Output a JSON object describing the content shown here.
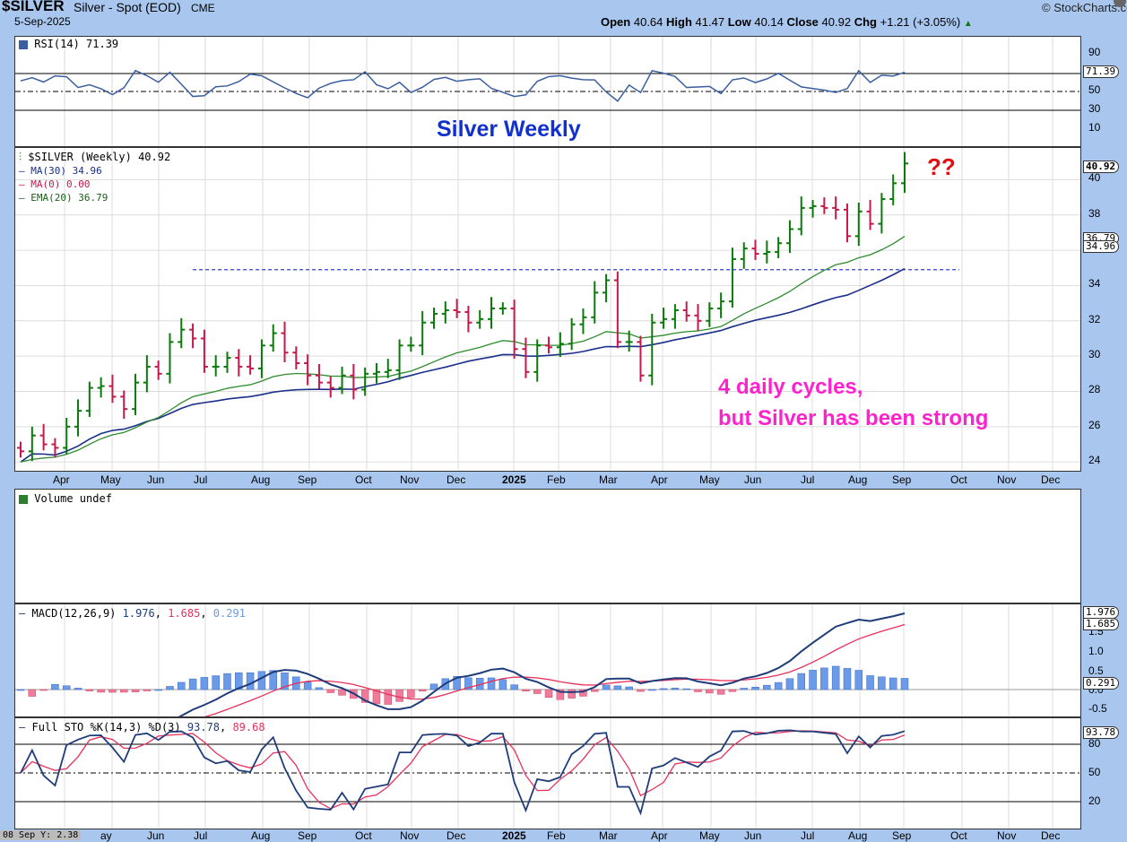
{
  "header": {
    "symbol": "$SILVER",
    "name": "Silver - Spot (EOD)",
    "exchange": "CME",
    "date": "5-Sep-2025",
    "brand": "StockCharts.com",
    "open_label": "Open",
    "open": "40.64",
    "high_label": "High",
    "high": "41.47",
    "low_label": "Low",
    "low": "40.14",
    "close_label": "Close",
    "close": "40.92",
    "chg_label": "Chg",
    "chg": "+1.21 (+3.05%)"
  },
  "rsi": {
    "legend": "RSI(14) 71.39",
    "tag": "71.39",
    "ticks": [
      "90",
      "70",
      "50",
      "30",
      "10"
    ]
  },
  "title": "Silver Weekly",
  "price": {
    "legend_main": "$SILVER (Weekly) 40.92",
    "legend_ma30": "MA(30) 34.96",
    "legend_ma0": "MA(0) 0.00",
    "legend_ema": "EMA(20) 36.79",
    "tag_close": "40.92",
    "tag_ema": "36.79",
    "tag_ma": "34.96",
    "question": "??",
    "note_line1": "4 daily cycles,",
    "note_line2": "but Silver has been strong",
    "colors": {
      "up": "#0a7a0a",
      "down": "#c8184a",
      "ma30": "#1a2f8a",
      "ema": "#2e8b2e",
      "resistance": "#2f3fd6",
      "note": "#ff22cc",
      "question": "#dd1111"
    }
  },
  "volume": {
    "legend": "Volume undef"
  },
  "macd": {
    "legend_prefix": "MACD(12,26,9)",
    "v1": "1.976",
    "v2": "1.685",
    "v3": "0.291",
    "tag1": "1.976",
    "tag2": "1.685",
    "tag3": "0.291",
    "ticks": [
      "1.0",
      "0.5",
      "0.0",
      "-0.5"
    ],
    "tick_partial": "1.5"
  },
  "sto": {
    "legend_prefix": "Full STO %K(14,3) %D(3)",
    "k": "93.78",
    "d": "89.68",
    "tag": "93.78",
    "ticks": [
      "80",
      "50",
      "20"
    ]
  },
  "x_axis": {
    "labels": [
      "Apr",
      "May",
      "Jun",
      "Jul",
      "Aug",
      "Sep",
      "Oct",
      "Nov",
      "Dec",
      "2025",
      "Feb",
      "Mar",
      "Apr",
      "May",
      "Jun",
      "Jul",
      "Aug",
      "Sep",
      "Oct",
      "Nov",
      "Dec"
    ],
    "bottom_labels": [
      "ay",
      "Jun",
      "Jul",
      "Aug",
      "Sep",
      "Oct",
      "Nov",
      "Dec",
      "2025",
      "Feb",
      "Mar",
      "Apr",
      "May",
      "Jun",
      "Jul",
      "Aug",
      "Sep",
      "Oct",
      "Nov",
      "Dec"
    ],
    "cursor_readout": "08 Sep Y: 2.38"
  },
  "chart_data": {
    "type": "line",
    "title": "Silver Weekly",
    "xlabel": "",
    "ylabel": "",
    "ylim": [
      23.5,
      41.8
    ],
    "x_range": [
      "2024-03",
      "2025-12"
    ],
    "grid": true,
    "legend_position": "top-left",
    "ohlc_weekly": {
      "note": "weekly OHLC bars, approximate readings",
      "open": [
        24.8,
        24.6,
        25.5,
        25.0,
        24.8,
        26.0,
        26.9,
        28.2,
        28.3,
        27.7,
        27.0,
        28.5,
        29.4,
        29.0,
        30.8,
        31.5,
        31.0,
        29.4,
        29.4,
        29.9,
        29.4,
        29.3,
        30.6,
        31.3,
        30.2,
        29.6,
        28.9,
        28.5,
        28.2,
        28.9,
        28.1,
        29.0,
        29.1,
        29.2,
        30.6,
        30.6,
        31.9,
        32.4,
        32.6,
        32.5,
        31.9,
        32.1,
        32.7,
        32.7,
        30.4,
        29.1,
        30.6,
        30.5,
        30.7,
        31.8,
        32.2,
        33.6,
        34.3,
        30.8,
        30.8,
        28.9,
        31.9,
        32.1,
        32.6,
        32.3,
        32.0,
        32.7,
        33.1,
        35.5,
        36.1,
        35.8,
        35.9,
        36.4,
        37.2,
        38.4,
        38.5,
        38.4,
        38.3,
        36.8,
        38.2,
        37.5,
        38.9,
        39.8
      ],
      "close": [
        24.6,
        25.5,
        25.0,
        24.8,
        26.0,
        26.9,
        28.2,
        28.3,
        27.7,
        27.0,
        28.5,
        29.4,
        29.0,
        30.8,
        31.5,
        31.0,
        29.4,
        29.4,
        29.9,
        29.4,
        29.3,
        30.6,
        31.3,
        30.2,
        29.6,
        28.9,
        28.5,
        28.2,
        28.9,
        28.1,
        29.0,
        29.1,
        29.2,
        30.6,
        30.6,
        31.9,
        32.4,
        32.6,
        32.5,
        31.9,
        32.1,
        32.7,
        32.7,
        30.4,
        29.1,
        30.6,
        30.5,
        30.7,
        31.8,
        32.2,
        33.6,
        34.3,
        30.8,
        30.8,
        28.9,
        31.9,
        32.1,
        32.6,
        32.3,
        32.0,
        32.7,
        33.1,
        35.5,
        36.1,
        35.8,
        35.9,
        36.4,
        37.2,
        38.4,
        38.5,
        38.4,
        38.3,
        36.8,
        38.2,
        37.5,
        38.9,
        39.8,
        40.92
      ]
    },
    "series": [
      {
        "name": "$SILVER (Weekly)",
        "values_ref": "ohlc_weekly.close"
      },
      {
        "name": "MA(30)",
        "start": 23.6,
        "end": 34.96
      },
      {
        "name": "EMA(20)",
        "start": 24.0,
        "end": 36.79
      },
      {
        "name": "Resistance",
        "value": 34.9
      }
    ],
    "y_ticks": [
      24,
      26,
      28,
      30,
      32,
      34,
      36,
      38,
      40
    ],
    "rsi_last": 71.39,
    "macd_last": [
      1.976,
      1.685,
      0.291
    ],
    "sto_last": [
      93.78,
      89.68
    ]
  }
}
